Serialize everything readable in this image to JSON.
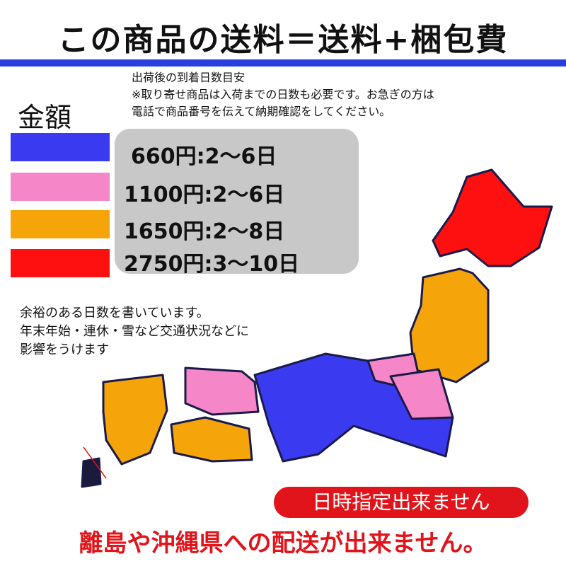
{
  "title": "この商品の送料＝送料+梱包費",
  "note_lines": [
    "出荷後の到着日数目安",
    "※取り寄せ商品は入荷までの日数も必要です。お急ぎの方は",
    "電話で商品番号を伝えて納期確認をしてください。"
  ],
  "legend_label": "金額",
  "tiers": [
    {
      "price": "660円:2〜6日",
      "color": "#3a3af0"
    },
    {
      "price": "1100円:2〜6日",
      "color": "#f587c8"
    },
    {
      "price": "1650円:2〜8日",
      "color": "#f5a50a"
    },
    {
      "price": "2750円:3〜10日",
      "color": "#ff1010"
    }
  ],
  "remark_lines": [
    "余裕のある日数を書いています。",
    "年末年始・連休・雪など交通状況などに",
    "影響をうけます"
  ],
  "no_date_label": "日時指定出来ません",
  "bottom_notice": "離島や沖縄県への配送が出来ません。"
}
